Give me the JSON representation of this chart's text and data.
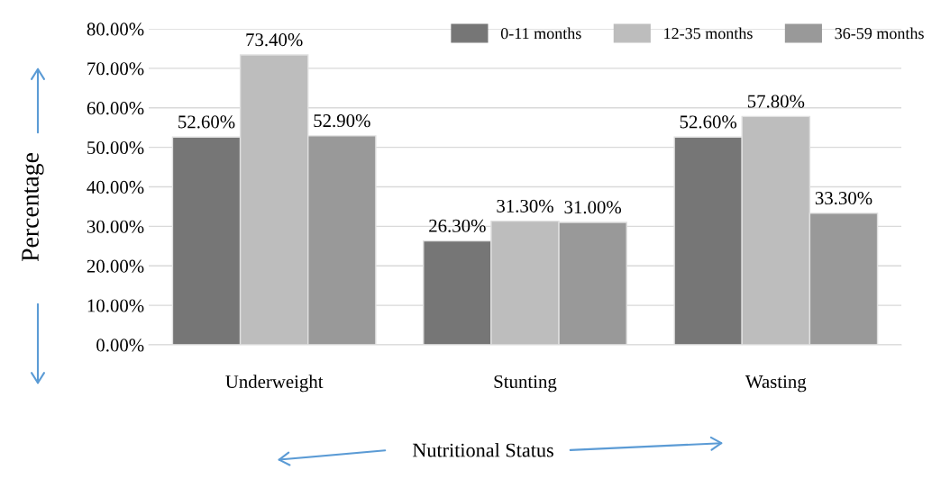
{
  "chart_data": {
    "type": "bar",
    "xlabel": "Nutritional Status",
    "ylabel": "Percentage",
    "categories": [
      "Underweight",
      "Stunting",
      "Wasting"
    ],
    "series": [
      {
        "name": "0-11 months",
        "color": "#767676",
        "values": [
          52.6,
          26.3,
          52.6
        ],
        "value_labels": [
          "52.60%",
          "26.30%",
          "52.60%"
        ]
      },
      {
        "name": "12-35 months",
        "color": "#bdbdbd",
        "values": [
          73.4,
          31.3,
          57.8
        ],
        "value_labels": [
          "73.40%",
          "31.30%",
          "57.80%"
        ]
      },
      {
        "name": "36-59 months",
        "color": "#999999",
        "values": [
          52.9,
          31.0,
          33.3
        ],
        "value_labels": [
          "52.90%",
          "31.00%",
          "33.30%"
        ]
      }
    ],
    "ylim": [
      0,
      80
    ],
    "yticks": [
      {
        "value": 0,
        "label": "0.00%"
      },
      {
        "value": 10,
        "label": "10.00%"
      },
      {
        "value": 20,
        "label": "20.00%"
      },
      {
        "value": 30,
        "label": "30.00%"
      },
      {
        "value": 40,
        "label": "40.00%"
      },
      {
        "value": 50,
        "label": "50.00%"
      },
      {
        "value": 60,
        "label": "60.00%"
      },
      {
        "value": 70,
        "label": "70.00%"
      },
      {
        "value": 80,
        "label": "80.00%"
      }
    ],
    "grid": "y",
    "legend": "top right"
  }
}
